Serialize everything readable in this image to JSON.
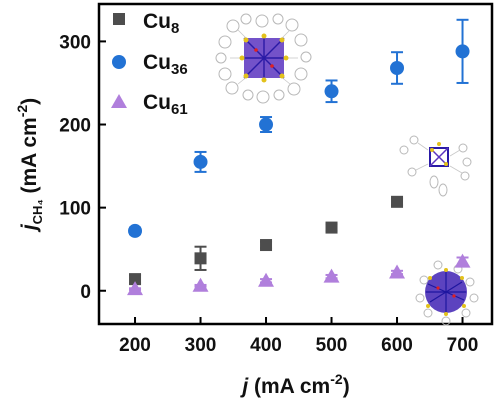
{
  "chart_data": {
    "type": "scatter",
    "x": [
      200,
      300,
      400,
      500,
      600,
      700
    ],
    "xticks": [
      200,
      300,
      400,
      500,
      600,
      700
    ],
    "yticks": [
      0,
      100,
      200,
      300
    ],
    "xlim": [
      145,
      745
    ],
    "ylim": [
      -40,
      345
    ],
    "xlabel": {
      "main": "j",
      "unit": " (mA cm",
      "exp": "-2",
      "close": ")"
    },
    "ylabel": {
      "main": "j",
      "sub": "CH₄",
      "unit": " (mA cm",
      "exp": "-2",
      "close": ")"
    },
    "grid": false,
    "legend_position": "top-left",
    "series": [
      {
        "name": "Cu₈",
        "label_base": "Cu",
        "label_sub": "8",
        "marker": "square",
        "color": "#4d4d4d",
        "values": [
          14,
          39,
          55,
          76,
          107,
          null
        ],
        "errors": [
          5,
          14,
          4,
          4,
          4,
          null
        ]
      },
      {
        "name": "Cu₃₆",
        "label_base": "Cu",
        "label_sub": "36",
        "marker": "circle",
        "color": "#2272d4",
        "values": [
          72,
          155,
          200,
          240,
          268,
          288
        ],
        "errors": [
          4,
          12,
          9,
          13,
          19,
          38
        ]
      },
      {
        "name": "Cu₆₁",
        "label_base": "Cu",
        "label_sub": "61",
        "marker": "triangle",
        "color": "#b07fdc",
        "values": [
          2,
          6,
          12,
          17,
          22,
          35
        ],
        "errors": [
          1,
          1,
          2,
          2,
          2,
          5
        ]
      }
    ]
  }
}
